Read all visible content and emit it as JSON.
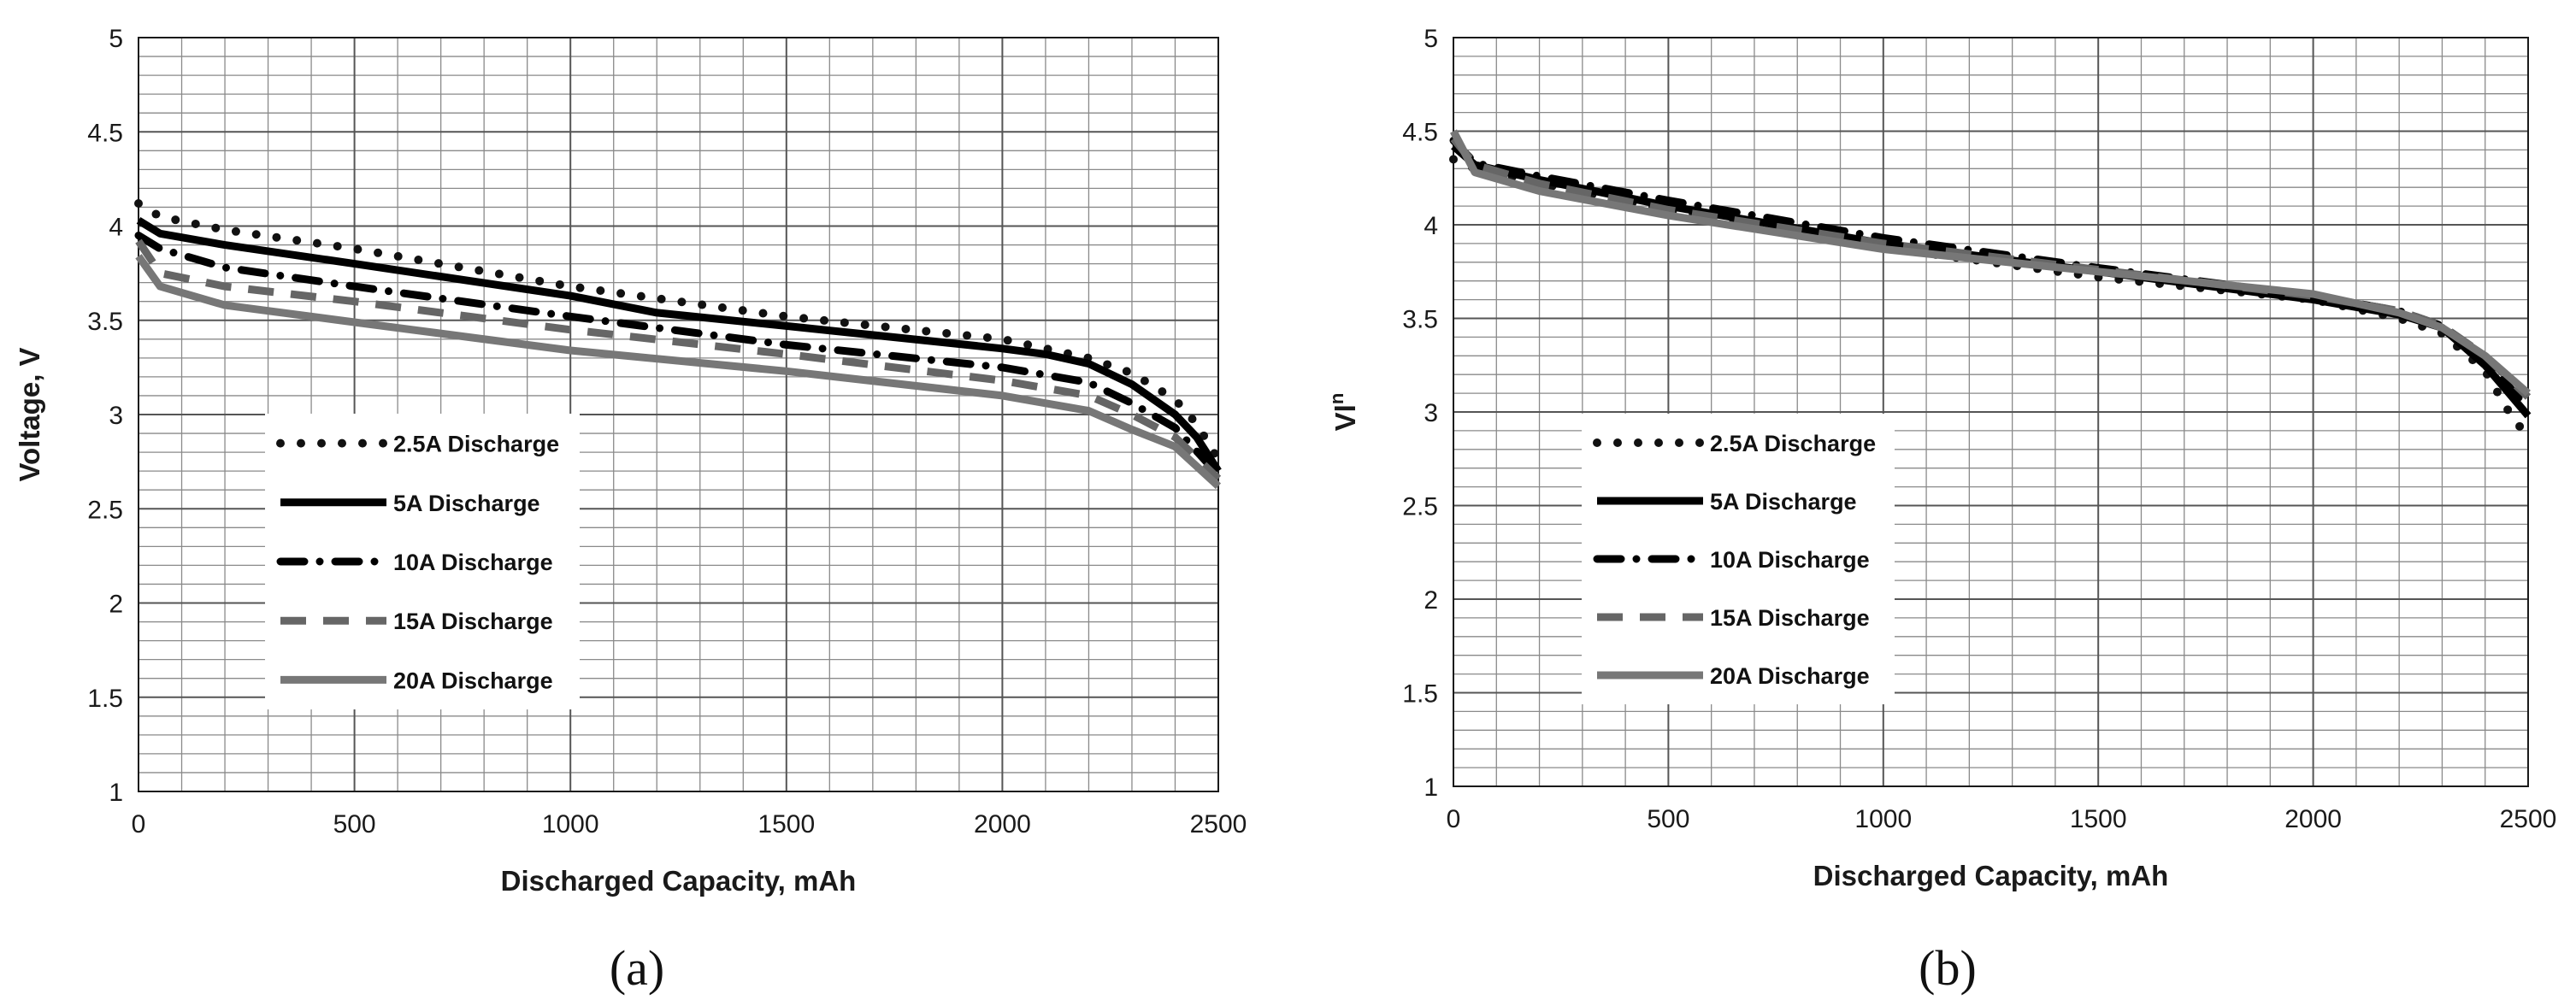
{
  "chart_data": [
    {
      "type": "line",
      "panel_label": "(a)",
      "xlabel": "Discharged Capacity, mAh",
      "ylabel": "Voltage, V",
      "ylabel_main": "Voltage, V",
      "ylabel_sup": "",
      "xlim": [
        0,
        2500
      ],
      "ylim": [
        1,
        5
      ],
      "x_ticks": [
        "0",
        "500",
        "1000",
        "1500",
        "2000",
        "2500"
      ],
      "y_ticks": [
        "1",
        "1.5",
        "2",
        "2.5",
        "3",
        "3.5",
        "4",
        "4.5",
        "5"
      ],
      "grid": true,
      "legend_position": "lower-left",
      "series": [
        {
          "name": "2.5A Discharge",
          "style": "dotted",
          "color": "#111111",
          "x": [
            0,
            50,
            200,
            500,
            1000,
            1500,
            2000,
            2200,
            2300,
            2400,
            2450,
            2500
          ],
          "y": [
            4.12,
            4.05,
            3.98,
            3.88,
            3.68,
            3.52,
            3.4,
            3.3,
            3.22,
            3.08,
            2.95,
            2.76
          ]
        },
        {
          "name": "5A Discharge",
          "style": "solid",
          "color": "#000000",
          "x": [
            0,
            50,
            200,
            500,
            1000,
            1200,
            1500,
            2000,
            2100,
            2200,
            2300,
            2400,
            2450,
            2500
          ],
          "y": [
            4.03,
            3.96,
            3.9,
            3.8,
            3.63,
            3.54,
            3.47,
            3.35,
            3.32,
            3.27,
            3.16,
            3.0,
            2.88,
            2.7
          ]
        },
        {
          "name": "10A Discharge",
          "style": "dash-dot",
          "color": "#000000",
          "x": [
            0,
            50,
            200,
            500,
            1000,
            1500,
            2000,
            2200,
            2300,
            2400,
            2500
          ],
          "y": [
            3.95,
            3.88,
            3.78,
            3.68,
            3.52,
            3.37,
            3.25,
            3.17,
            3.06,
            2.93,
            2.68
          ]
        },
        {
          "name": "15A Discharge",
          "style": "dashed",
          "color": "#666666",
          "x": [
            0,
            50,
            200,
            500,
            1000,
            1500,
            2000,
            2200,
            2300,
            2400,
            2500
          ],
          "y": [
            3.92,
            3.75,
            3.68,
            3.6,
            3.45,
            3.32,
            3.18,
            3.1,
            3.0,
            2.88,
            2.66
          ]
        },
        {
          "name": "20A Discharge",
          "style": "solid",
          "color": "#777777",
          "x": [
            0,
            50,
            200,
            500,
            1000,
            1500,
            2000,
            2200,
            2300,
            2400,
            2500
          ],
          "y": [
            3.84,
            3.68,
            3.58,
            3.49,
            3.34,
            3.23,
            3.1,
            3.02,
            2.92,
            2.83,
            2.62
          ]
        }
      ]
    },
    {
      "type": "line",
      "panel_label": "(b)",
      "xlabel": "Discharged Capacity, mAh",
      "ylabel": "Vlⁿ",
      "ylabel_main": "Vl",
      "ylabel_sup": "n",
      "xlim": [
        0,
        2500
      ],
      "ylim": [
        1,
        5
      ],
      "x_ticks": [
        "0",
        "500",
        "1000",
        "1500",
        "2000",
        "2500"
      ],
      "y_ticks": [
        "1",
        "1.5",
        "2",
        "2.5",
        "3",
        "3.5",
        "4",
        "4.5",
        "5"
      ],
      "grid": true,
      "legend_position": "lower-left",
      "series": [
        {
          "name": "2.5A Discharge",
          "style": "dotted",
          "color": "#111111",
          "x": [
            0,
            50,
            200,
            500,
            1000,
            1500,
            2000,
            2200,
            2300,
            2400,
            2450,
            2500
          ],
          "y": [
            4.35,
            4.3,
            4.22,
            4.08,
            3.88,
            3.72,
            3.6,
            3.5,
            3.42,
            3.22,
            3.02,
            2.86
          ]
        },
        {
          "name": "5A Discharge",
          "style": "solid",
          "color": "#000000",
          "x": [
            0,
            50,
            200,
            500,
            1000,
            1500,
            2000,
            2200,
            2300,
            2400,
            2500
          ],
          "y": [
            4.42,
            4.32,
            4.24,
            4.1,
            3.9,
            3.75,
            3.6,
            3.52,
            3.45,
            3.25,
            2.98
          ]
        },
        {
          "name": "10A Discharge",
          "style": "dash-dot",
          "color": "#000000",
          "x": [
            0,
            50,
            200,
            500,
            1000,
            1500,
            2000,
            2200,
            2300,
            2400,
            2500
          ],
          "y": [
            4.45,
            4.33,
            4.26,
            4.13,
            3.93,
            3.77,
            3.62,
            3.54,
            3.46,
            3.28,
            3.02
          ]
        },
        {
          "name": "15A Discharge",
          "style": "dashed",
          "color": "#666666",
          "x": [
            0,
            50,
            200,
            500,
            1000,
            1500,
            2000,
            2200,
            2300,
            2400,
            2500
          ],
          "y": [
            4.46,
            4.32,
            4.22,
            4.08,
            3.9,
            3.76,
            3.62,
            3.54,
            3.46,
            3.3,
            3.08
          ]
        },
        {
          "name": "20A Discharge",
          "style": "solid",
          "color": "#777777",
          "x": [
            0,
            50,
            200,
            500,
            1000,
            1500,
            2000,
            2200,
            2300,
            2400,
            2500
          ],
          "y": [
            4.5,
            4.28,
            4.18,
            4.05,
            3.87,
            3.75,
            3.63,
            3.53,
            3.45,
            3.3,
            3.1
          ]
        }
      ]
    }
  ]
}
